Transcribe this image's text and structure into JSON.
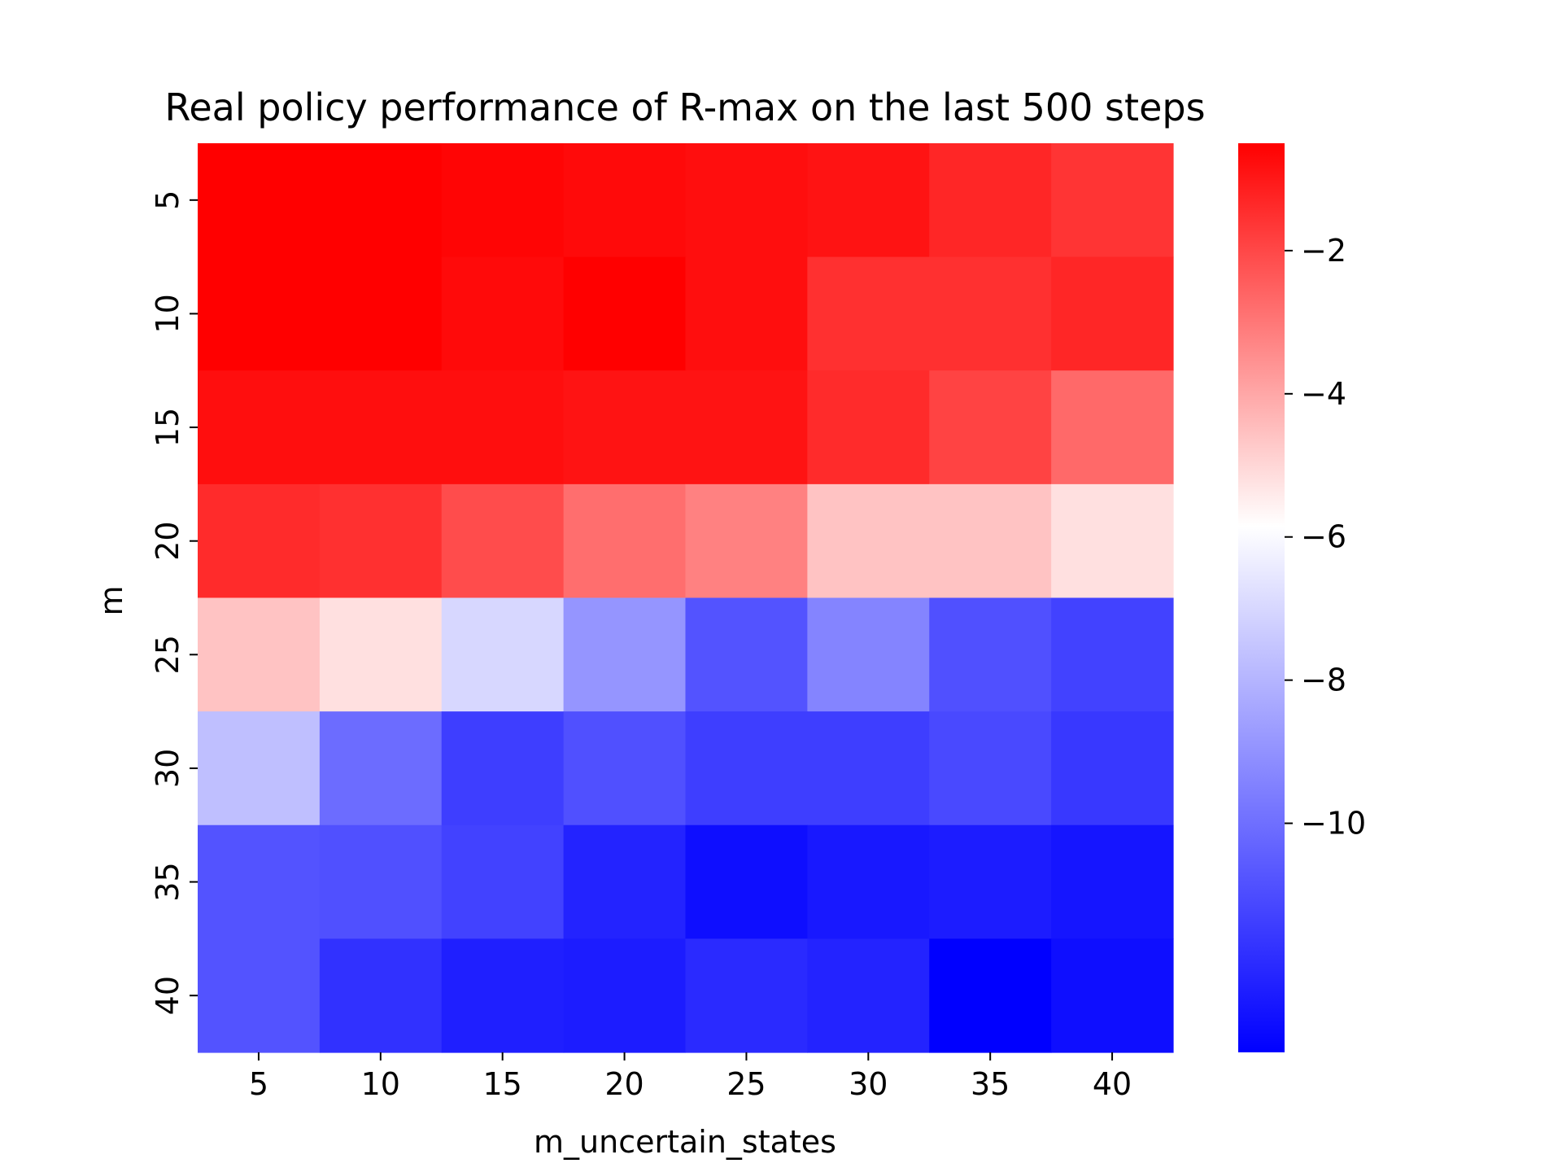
{
  "chart_data": {
    "type": "heatmap",
    "title": "Real policy performance of R-max on the last 500 steps",
    "xlabel": "m_uncertain_states",
    "ylabel": "m",
    "x_categories": [
      "5",
      "10",
      "15",
      "20",
      "25",
      "30",
      "35",
      "40"
    ],
    "y_categories": [
      "5",
      "10",
      "15",
      "20",
      "25",
      "30",
      "35",
      "40"
    ],
    "values": [
      [
        -0.5,
        -0.5,
        -0.6,
        -0.7,
        -0.8,
        -0.9,
        -1.3,
        -1.6
      ],
      [
        -0.5,
        -0.5,
        -0.7,
        -0.5,
        -0.8,
        -1.5,
        -1.5,
        -1.3
      ],
      [
        -0.8,
        -0.8,
        -0.8,
        -0.9,
        -0.9,
        -1.4,
        -1.9,
        -2.7
      ],
      [
        -1.4,
        -1.5,
        -2.1,
        -2.8,
        -3.2,
        -4.6,
        -4.6,
        -5.2
      ],
      [
        -4.6,
        -5.2,
        -7.0,
        -8.9,
        -10.8,
        -9.4,
        -10.9,
        -11.3
      ],
      [
        -7.7,
        -10.1,
        -11.4,
        -10.9,
        -11.4,
        -11.4,
        -11.1,
        -11.6
      ],
      [
        -10.8,
        -10.9,
        -11.3,
        -12.2,
        -12.8,
        -12.5,
        -12.4,
        -12.6
      ],
      [
        -10.8,
        -11.8,
        -12.3,
        -12.4,
        -12.0,
        -12.2,
        -13.2,
        -12.8
      ]
    ],
    "colormap": {
      "low": "#0000ff",
      "mid": "#ffffff",
      "high": "#ff0000"
    },
    "vmin": -13.2,
    "vmid": -5.85,
    "vmax": -0.5,
    "colorbar_ticks": [
      -2,
      -4,
      -6,
      -8,
      -10
    ],
    "colorbar_tick_labels": [
      "−2",
      "−4",
      "−6",
      "−8",
      "−10"
    ],
    "grid": false,
    "legend": "colorbar-right"
  }
}
